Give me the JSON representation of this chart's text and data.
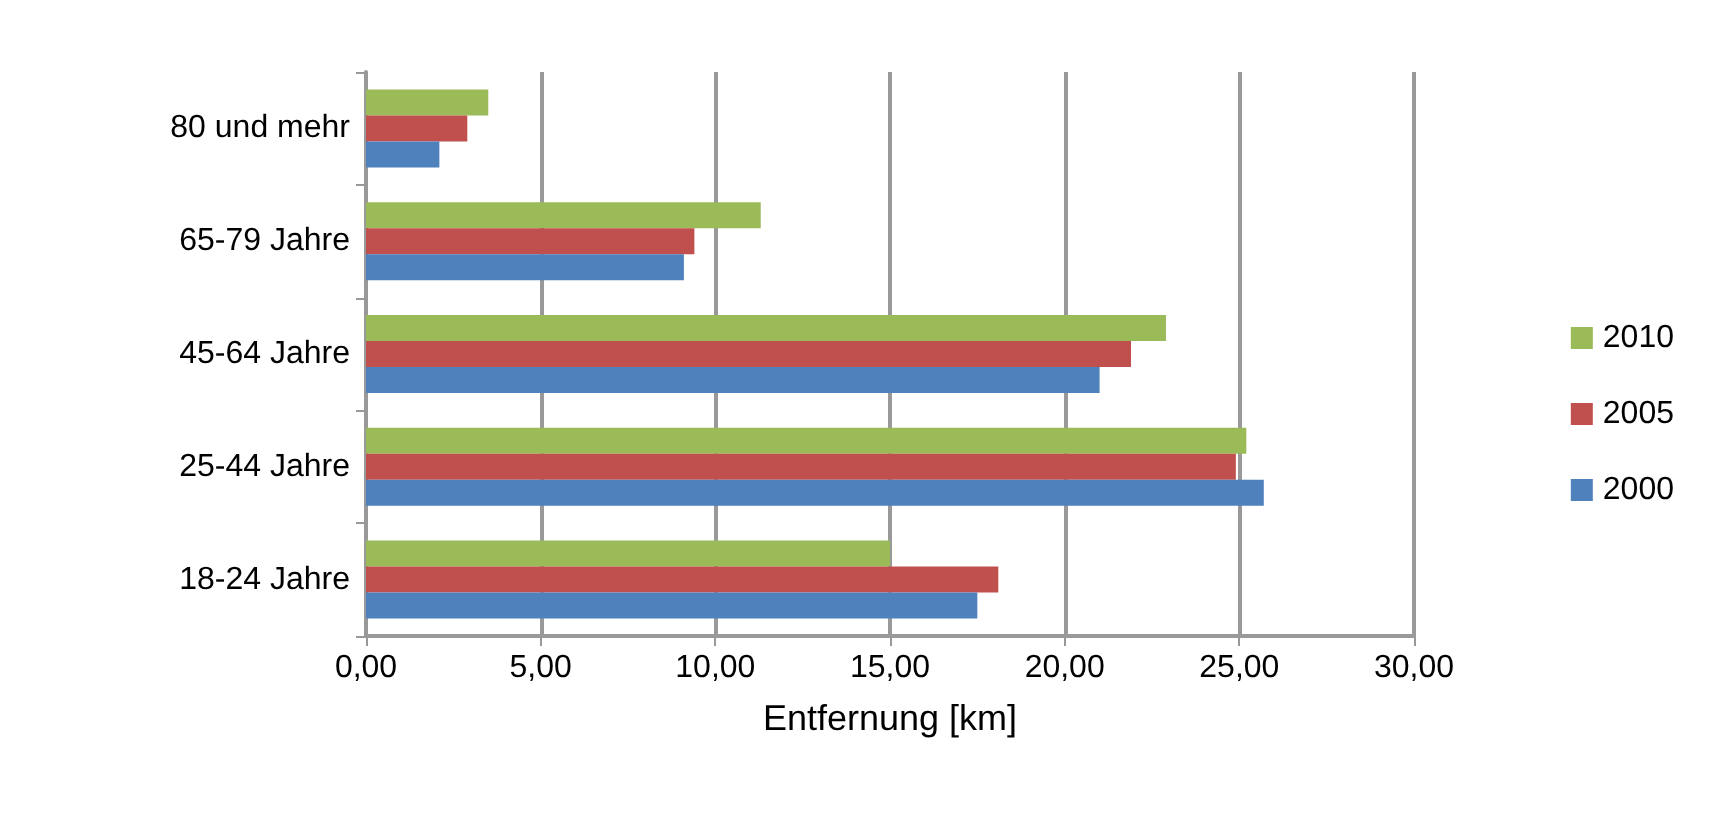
{
  "chart_data": {
    "type": "bar",
    "orientation": "horizontal",
    "xlabel": "Entfernung [km]",
    "categories": [
      "80 und mehr",
      "65-79 Jahre",
      "45-64 Jahre",
      "25-44 Jahre",
      "18-24 Jahre"
    ],
    "series": [
      {
        "name": "2010",
        "color": "#9bbb59",
        "values": [
          3.5,
          11.3,
          22.9,
          25.2,
          15.0
        ]
      },
      {
        "name": "2005",
        "color": "#c0504d",
        "values": [
          2.9,
          9.4,
          21.9,
          24.9,
          18.1
        ]
      },
      {
        "name": "2000",
        "color": "#4f81bd",
        "values": [
          2.1,
          9.1,
          21.0,
          25.7,
          17.5
        ]
      }
    ],
    "xlim": [
      0,
      30
    ],
    "xticks": [
      {
        "value": 0,
        "label": "0,00"
      },
      {
        "value": 5,
        "label": "5,00"
      },
      {
        "value": 10,
        "label": "10,00"
      },
      {
        "value": 15,
        "label": "15,00"
      },
      {
        "value": 20,
        "label": "20,00"
      },
      {
        "value": 25,
        "label": "25,00"
      },
      {
        "value": 30,
        "label": "30,00"
      }
    ],
    "grid": "x",
    "legend": "right"
  }
}
